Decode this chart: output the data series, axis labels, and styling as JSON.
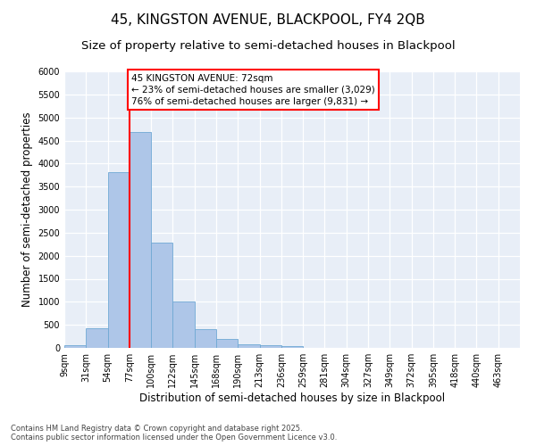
{
  "title_line1": "45, KINGSTON AVENUE, BLACKPOOL, FY4 2QB",
  "title_line2": "Size of property relative to semi-detached houses in Blackpool",
  "xlabel": "Distribution of semi-detached houses by size in Blackpool",
  "ylabel": "Number of semi-detached properties",
  "footnote": "Contains HM Land Registry data © Crown copyright and database right 2025.\nContains public sector information licensed under the Open Government Licence v3.0.",
  "bin_labels": [
    "9sqm",
    "31sqm",
    "54sqm",
    "77sqm",
    "100sqm",
    "122sqm",
    "145sqm",
    "168sqm",
    "190sqm",
    "213sqm",
    "236sqm",
    "259sqm",
    "281sqm",
    "304sqm",
    "327sqm",
    "349sqm",
    "372sqm",
    "395sqm",
    "418sqm",
    "440sqm",
    "463sqm"
  ],
  "bar_heights": [
    50,
    430,
    3820,
    4680,
    2280,
    1000,
    410,
    200,
    75,
    65,
    40,
    0,
    0,
    0,
    0,
    0,
    0,
    0,
    0,
    0,
    0
  ],
  "bar_color": "#aec6e8",
  "bar_edge_color": "#6fa8d4",
  "vline_after_bar_idx": 2,
  "vline_color": "red",
  "annotation_title": "45 KINGSTON AVENUE: 72sqm",
  "annotation_line1": "← 23% of semi-detached houses are smaller (3,029)",
  "annotation_line2": "76% of semi-detached houses are larger (9,831) →",
  "ylim": [
    0,
    6000
  ],
  "yticks": [
    0,
    500,
    1000,
    1500,
    2000,
    2500,
    3000,
    3500,
    4000,
    4500,
    5000,
    5500,
    6000
  ],
  "bg_color": "#e8eef7",
  "grid_color": "white",
  "title_fontsize": 11,
  "subtitle_fontsize": 9.5,
  "axis_label_fontsize": 8.5,
  "tick_fontsize": 7,
  "annotation_fontsize": 7.5
}
